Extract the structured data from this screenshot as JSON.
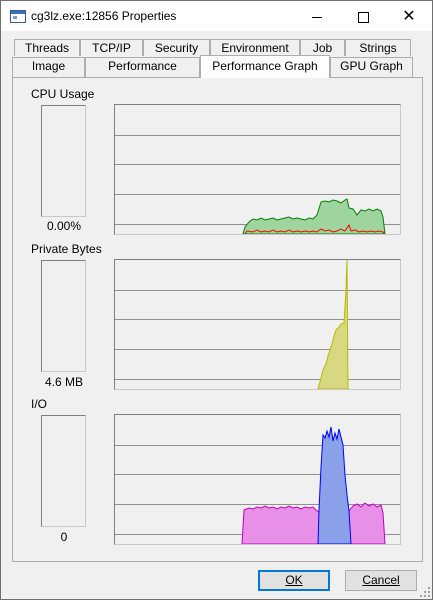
{
  "window": {
    "title": "cg3lz.exe:12856 Properties",
    "icon": "app-window-icon"
  },
  "tabs_row1": [
    "Threads",
    "TCP/IP",
    "Security",
    "Environment",
    "Job",
    "Strings"
  ],
  "tabs_row2": [
    "Image",
    "Performance",
    "Performance Graph",
    "GPU Graph"
  ],
  "active_tab": "Performance Graph",
  "sections": {
    "cpu": {
      "label": "CPU Usage",
      "value": "0.00%",
      "colors": {
        "kernel": "#ff0000",
        "total": "#008000",
        "fill": "#9fd49f"
      }
    },
    "private_bytes": {
      "label": "Private Bytes",
      "value": "4.6 MB",
      "colors": {
        "line": "#c8c800",
        "fill": "#d8d880"
      }
    },
    "io": {
      "label": "I/O",
      "value": "0",
      "colors": {
        "read": "#0000ff",
        "read_fill": "#8aa0e8",
        "other": "#c000c0",
        "other_fill": "#e890e8"
      }
    }
  },
  "buttons": {
    "ok": "OK",
    "cancel": "Cancel"
  },
  "icons": {
    "minimize": "minimize-icon",
    "maximize": "maximize-icon",
    "close": "close-icon"
  }
}
